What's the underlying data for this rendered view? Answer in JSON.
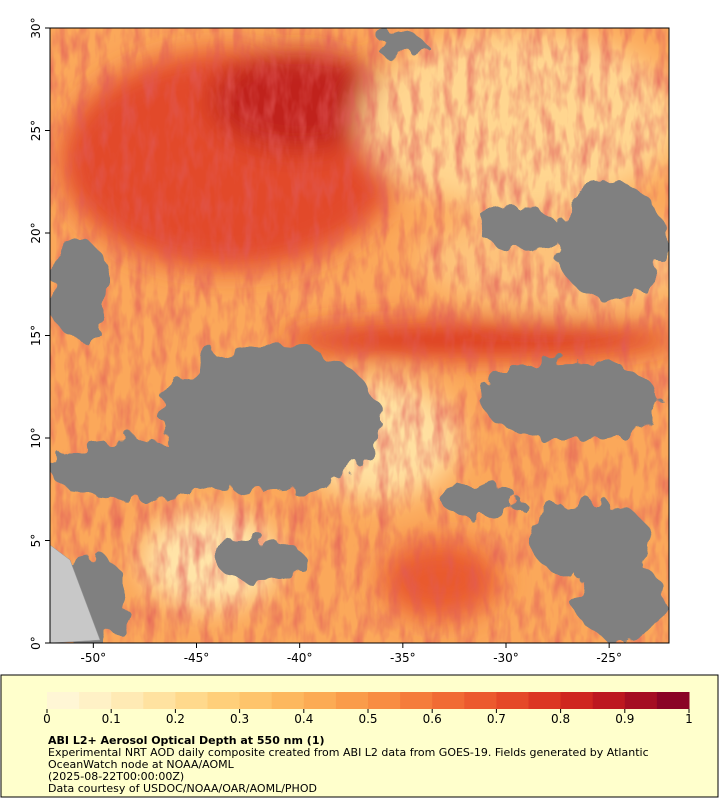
{
  "map": {
    "xlim": [
      -52.1,
      -22.1
    ],
    "ylim": [
      0,
      30
    ],
    "xticks": [
      {
        "value": -50,
        "label": "-50°"
      },
      {
        "value": -45,
        "label": "-45°"
      },
      {
        "value": -40,
        "label": "-40°"
      },
      {
        "value": -35,
        "label": "-35°"
      },
      {
        "value": -30,
        "label": "-30°"
      },
      {
        "value": -25,
        "label": "-25°"
      }
    ],
    "yticks": [
      {
        "value": 0,
        "label": "0°"
      },
      {
        "value": 5,
        "label": "5°"
      },
      {
        "value": 10,
        "label": "10°"
      },
      {
        "value": 15,
        "label": "15°"
      },
      {
        "value": 20,
        "label": "20°"
      },
      {
        "value": 25,
        "label": "25°"
      },
      {
        "value": 30,
        "label": "30°"
      }
    ]
  },
  "colorbar": {
    "lim": [
      0,
      1
    ],
    "ticks": [
      0,
      0.1,
      0.2,
      0.3,
      0.4,
      0.5,
      0.6,
      0.7,
      0.8,
      0.9,
      1
    ],
    "colors": [
      "#fff6d5",
      "#fff1c6",
      "#ffeab4",
      "#ffe2a0",
      "#ffd98c",
      "#ffcf7a",
      "#fec46b",
      "#fdb85e",
      "#fcab54",
      "#fa9c4a",
      "#f88d42",
      "#f57c3b",
      "#f16b34",
      "#ec5a2e",
      "#e54828",
      "#dc3623",
      "#cf261f",
      "#bd181f",
      "#a50e22",
      "#8a0425"
    ]
  },
  "caption": {
    "title": "ABI L2+ Aerosol Optical Depth at 550 nm (1)",
    "lines": [
      "Experimental NRT AOD daily composite created from ABI L2 data from GOES-19. Fields generated by Atlantic",
      "OceanWatch node at NOAA/AOML",
      "(2025-08-22T00:00:00Z)",
      "Data courtesy of USDOC/NOAA/OAR/AOML/PHOD"
    ]
  }
}
